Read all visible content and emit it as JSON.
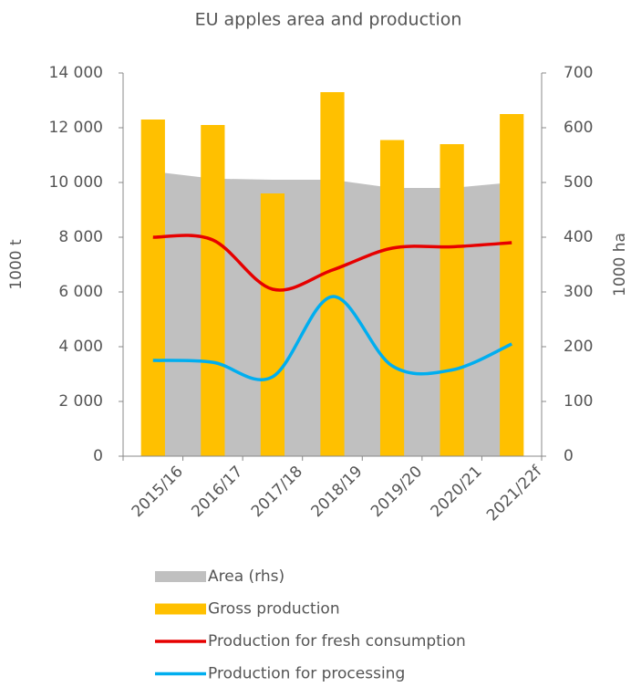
{
  "chart_data": {
    "type": "combo",
    "title": "EU apples area and production",
    "y_label": "1000 t",
    "y2_label": "1000 ha",
    "categories": [
      "2015/16",
      "2016/17",
      "2017/18",
      "2018/19",
      "2019/20",
      "2020/21",
      "2021/22f"
    ],
    "ylim": [
      0,
      14000
    ],
    "yticks": [
      0,
      {
        "value": 2000,
        "label": "2 000"
      },
      {
        "value": 4000,
        "label": "4 000"
      },
      {
        "value": 6000,
        "label": "6 000"
      },
      {
        "value": 8000,
        "label": "8 000"
      },
      {
        "value": 10000,
        "label": "10 000"
      },
      {
        "value": 12000,
        "label": "12 000"
      },
      {
        "value": 14000,
        "label": "14 000"
      }
    ],
    "y2lim": [
      0,
      700
    ],
    "y2ticks": [
      0,
      100,
      200,
      300,
      400,
      500,
      600,
      700
    ],
    "grid": false,
    "series": [
      {
        "name": "Area (rhs)",
        "kind": "area",
        "axis": "y2",
        "color": "#c0c0c0",
        "values": [
          520,
          507,
          505,
          505,
          490,
          490,
          500
        ]
      },
      {
        "name": "Gross production",
        "kind": "bar",
        "color": "#ffc000",
        "values": [
          12300,
          12100,
          9600,
          13300,
          11550,
          11400,
          12500
        ]
      },
      {
        "name": "Production for fresh consumption",
        "kind": "line",
        "color": "#e60000",
        "values": [
          8000,
          7900,
          6100,
          6800,
          7600,
          7650,
          7800
        ]
      },
      {
        "name": "Production for processing",
        "kind": "line",
        "color": "#00aeef",
        "values": [
          3500,
          3430,
          2900,
          5830,
          3300,
          3150,
          4100
        ]
      }
    ]
  }
}
